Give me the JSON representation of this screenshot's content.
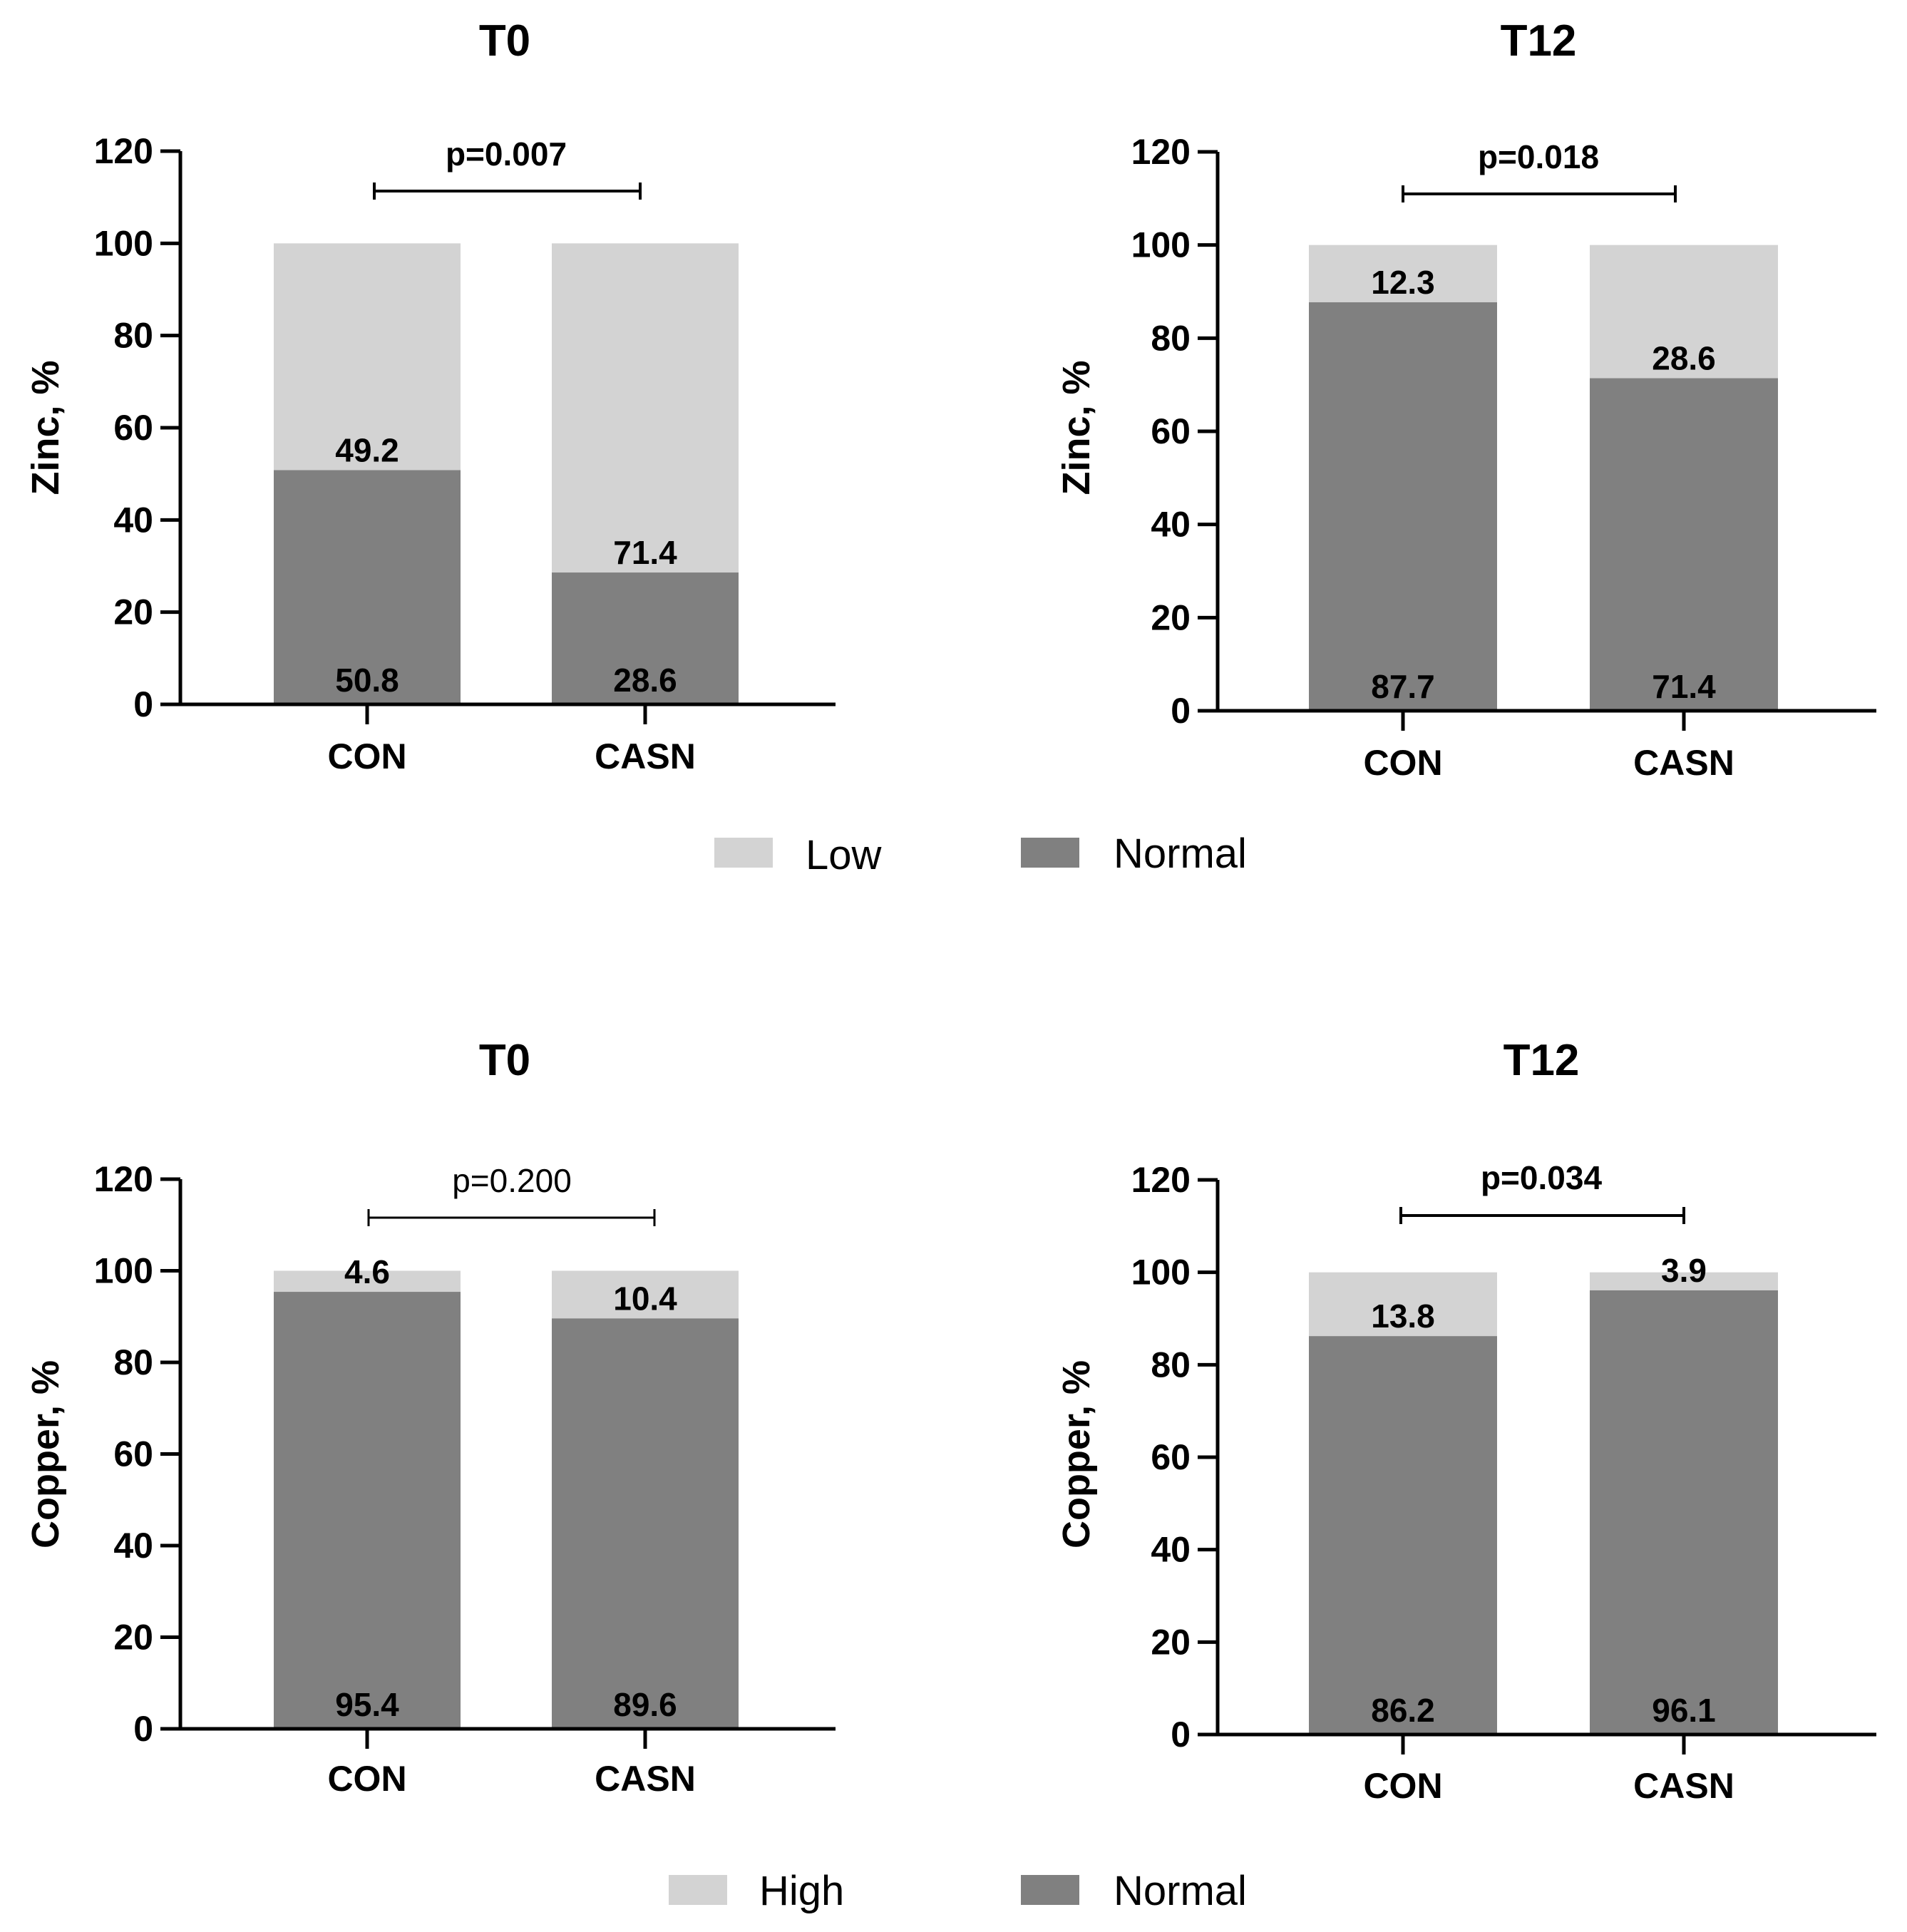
{
  "chart_data": [
    {
      "type": "bar",
      "stacked": true,
      "title": "T0",
      "ylabel": "Zinc, %",
      "xlabel": "",
      "ylim": [
        0,
        120
      ],
      "yticks": [
        "0",
        "20",
        "40",
        "60",
        "80",
        "100",
        "120"
      ],
      "categories": [
        "CON",
        "CASN"
      ],
      "series": [
        {
          "name": "Normal",
          "values": [
            50.8,
            28.6
          ],
          "labels": [
            "50.8",
            "28.6"
          ]
        },
        {
          "name": "Low",
          "values": [
            49.2,
            71.4
          ],
          "labels": [
            "49.2",
            "71.4"
          ]
        }
      ],
      "p_value": "p=0.007",
      "p_bold": true
    },
    {
      "type": "bar",
      "stacked": true,
      "title": "T12",
      "ylabel": "Zinc, %",
      "xlabel": "",
      "ylim": [
        0,
        120
      ],
      "yticks": [
        "0",
        "20",
        "40",
        "60",
        "80",
        "100",
        "120"
      ],
      "categories": [
        "CON",
        "CASN"
      ],
      "series": [
        {
          "name": "Normal",
          "values": [
            87.7,
            71.4
          ],
          "labels": [
            "87.7",
            "71.4"
          ]
        },
        {
          "name": "Low",
          "values": [
            12.3,
            28.6
          ],
          "labels": [
            "12.3",
            "28.6"
          ]
        }
      ],
      "p_value": "p=0.018",
      "p_bold": true
    },
    {
      "type": "bar",
      "stacked": true,
      "title": "T0",
      "ylabel": "Copper, %",
      "xlabel": "",
      "ylim": [
        0,
        120
      ],
      "yticks": [
        "0",
        "20",
        "40",
        "60",
        "80",
        "100",
        "120"
      ],
      "categories": [
        "CON",
        "CASN"
      ],
      "series": [
        {
          "name": "Normal",
          "values": [
            95.4,
            89.6
          ],
          "labels": [
            "95.4",
            "89.6"
          ]
        },
        {
          "name": "High",
          "values": [
            4.6,
            10.4
          ],
          "labels": [
            "4.6",
            "10.4"
          ]
        }
      ],
      "p_value": "p=0.200",
      "p_bold": false
    },
    {
      "type": "bar",
      "stacked": true,
      "title": "T12",
      "ylabel": "Copper, %",
      "xlabel": "",
      "ylim": [
        0,
        120
      ],
      "yticks": [
        "0",
        "20",
        "40",
        "60",
        "80",
        "100",
        "120"
      ],
      "categories": [
        "CON",
        "CASN"
      ],
      "series": [
        {
          "name": "Normal",
          "values": [
            86.2,
            96.1
          ],
          "labels": [
            "86.2",
            "96.1"
          ]
        },
        {
          "name": "High",
          "values": [
            13.8,
            3.9
          ],
          "labels": [
            "13.8",
            "3.9"
          ]
        }
      ],
      "p_value": "p=0.034",
      "p_bold": true
    }
  ],
  "legends": [
    {
      "items": [
        {
          "label": "Low",
          "color": "#d3d3d3"
        },
        {
          "label": "Normal",
          "color": "#808080"
        }
      ]
    },
    {
      "items": [
        {
          "label": "High",
          "color": "#d3d3d3"
        },
        {
          "label": "Normal",
          "color": "#808080"
        }
      ]
    }
  ],
  "colors": {
    "Normal": "#808080",
    "Low": "#d3d3d3",
    "High": "#d3d3d3",
    "axis": "#000000"
  }
}
